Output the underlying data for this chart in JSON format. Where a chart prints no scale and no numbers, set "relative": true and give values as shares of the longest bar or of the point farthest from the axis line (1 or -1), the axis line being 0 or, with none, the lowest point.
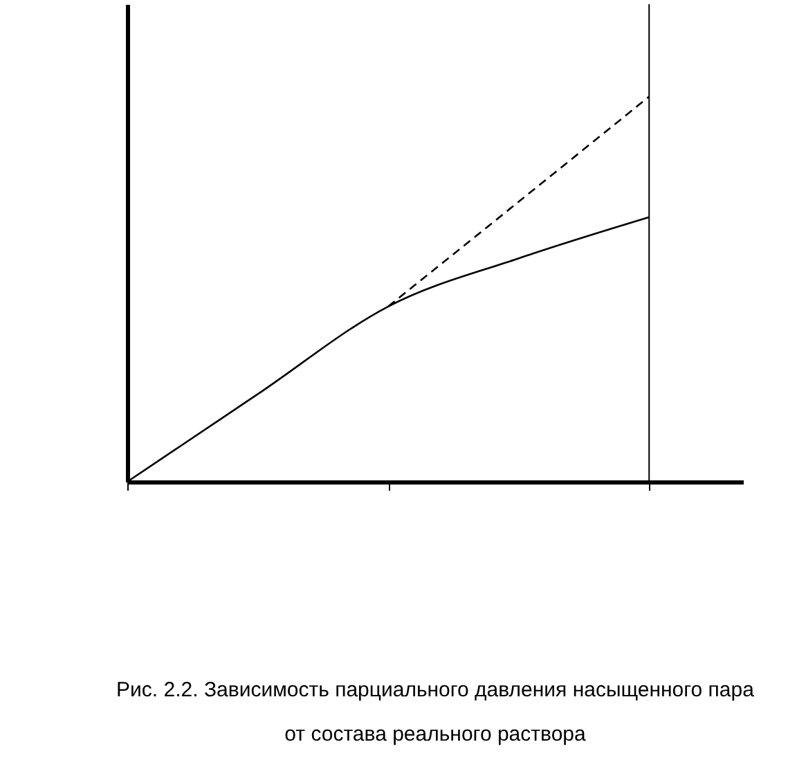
{
  "chart_data": {
    "type": "line",
    "relative": true,
    "title": "Рис. 2.2. Зависимость парциального давления насыщенного пара\nот состава реального раствора",
    "categories": [
      null,
      null,
      null,
      null,
      null
    ],
    "series": [
      {
        "color": "#000000",
        "line_style": "solid",
        "values": [
          0,
          0.2275,
          0.455,
          0.58,
          0.687
        ]
      },
      {
        "color": "#000000",
        "line_style": "dashed",
        "values": [
          null,
          null,
          0.455,
          0.727,
          1
        ]
      }
    ]
  }
}
